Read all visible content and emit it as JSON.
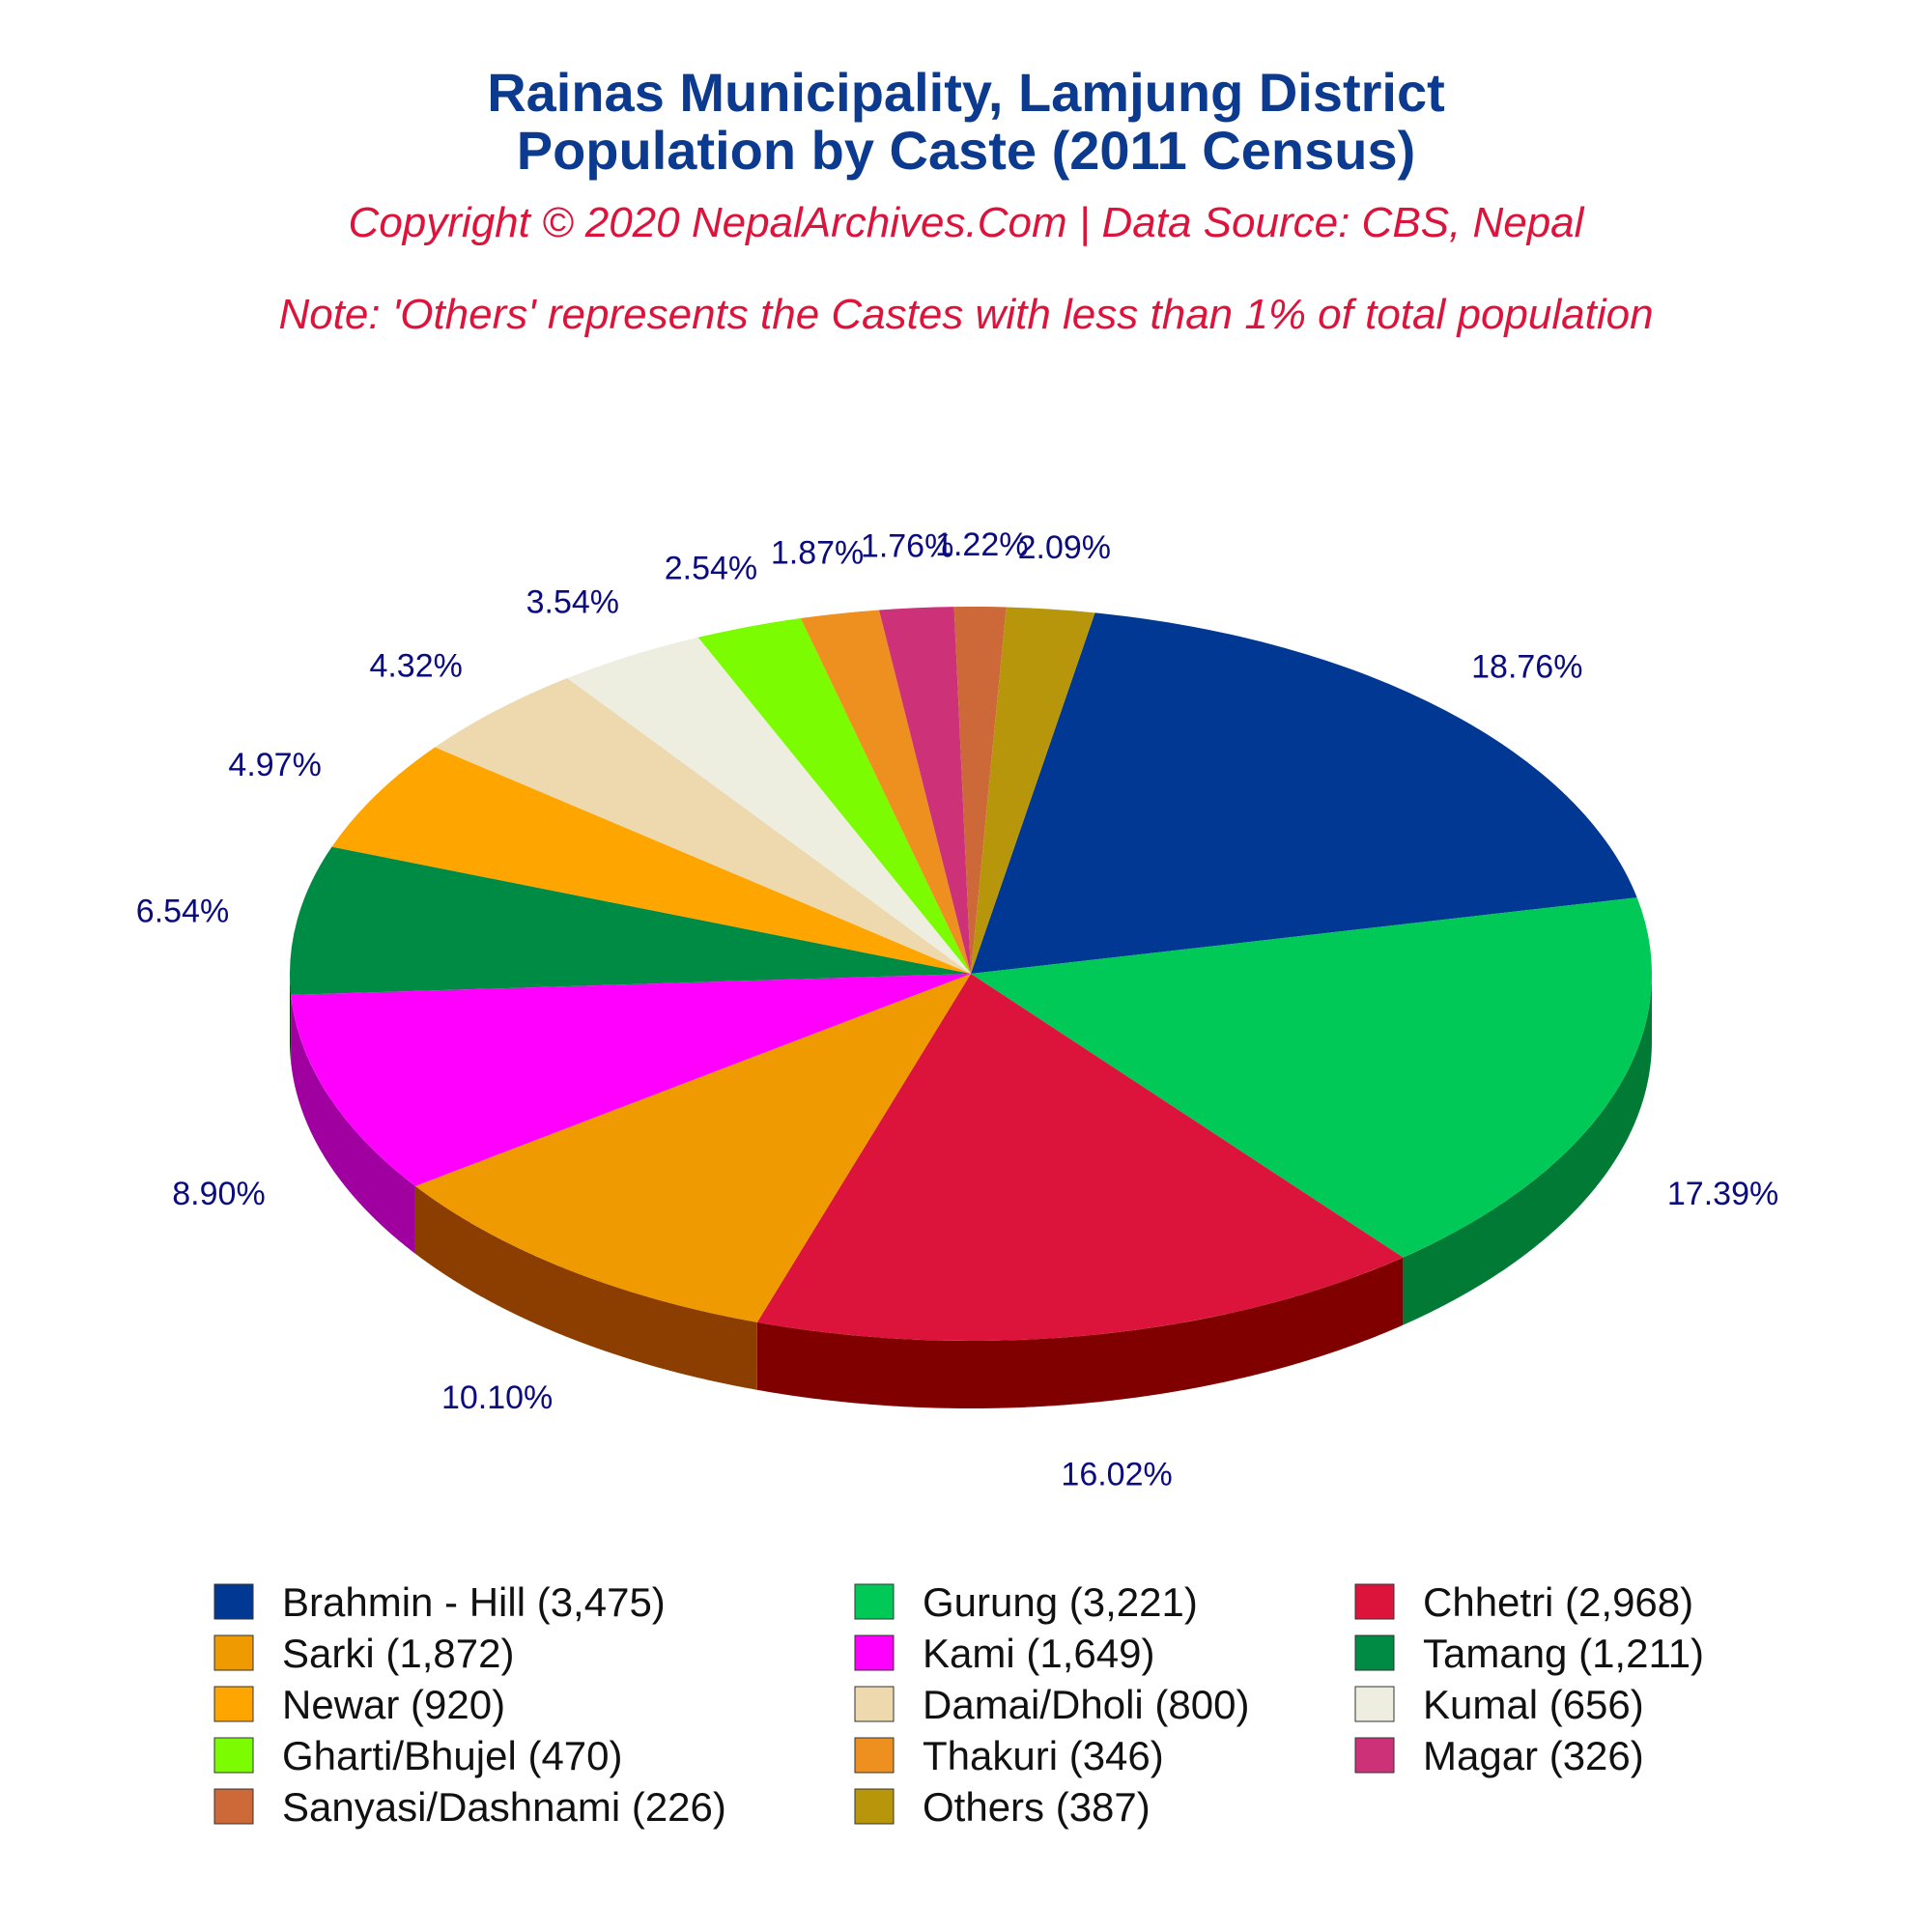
{
  "title_line1": "Rainas Municipality, Lamjung District",
  "title_line2": "Population by Caste (2011 Census)",
  "copyright": "Copyright © 2020 NepalArchives.Com | Data Source: CBS, Nepal",
  "note": "Note: 'Others' represents the Castes with less than 1% of total population",
  "chart_data": {
    "type": "pie",
    "style": "3d",
    "legend_position": "bottom",
    "slices": [
      {
        "label": "Brahmin - Hill (3,475)",
        "value": 3475,
        "pct_label": "18.76%",
        "color": "#003893",
        "side_color": "#001f5c"
      },
      {
        "label": "Gurung (3,221)",
        "value": 3221,
        "pct_label": "17.39%",
        "color": "#00c957",
        "side_color": "#007a35"
      },
      {
        "label": "Chhetri (2,968)",
        "value": 2968,
        "pct_label": "16.02%",
        "color": "#dc143c",
        "side_color": "#800000"
      },
      {
        "label": "Sarki (1,872)",
        "value": 1872,
        "pct_label": "10.10%",
        "color": "#ee9a00",
        "side_color": "#8b3e00"
      },
      {
        "label": "Kami (1,649)",
        "value": 1649,
        "pct_label": "8.90%",
        "color": "#ff00ff",
        "side_color": "#a000a0"
      },
      {
        "label": "Tamang (1,211)",
        "value": 1211,
        "pct_label": "6.54%",
        "color": "#008b45",
        "side_color": "#003300"
      },
      {
        "label": "Newar (920)",
        "value": 920,
        "pct_label": "4.97%",
        "color": "#ffa500",
        "side_color": "#a34c00"
      },
      {
        "label": "Damai/Dholi (800)",
        "value": 800,
        "pct_label": "4.32%",
        "color": "#eed8ae",
        "side_color": "#9a7b4a"
      },
      {
        "label": "Kumal (656)",
        "value": 656,
        "pct_label": "3.54%",
        "color": "#eeeee0",
        "side_color": "#8b8b70"
      },
      {
        "label": "Gharti/Bhujel (470)",
        "value": 470,
        "pct_label": "2.54%",
        "color": "#7cfc00",
        "side_color": "#3c8000"
      },
      {
        "label": "Thakuri (346)",
        "value": 346,
        "pct_label": "1.87%",
        "color": "#ee9020",
        "side_color": "#8b4c00"
      },
      {
        "label": "Magar (326)",
        "value": 326,
        "pct_label": "1.76%",
        "color": "#cd3278",
        "side_color": "#7a1040"
      },
      {
        "label": "Sanyasi/Dashnami (226)",
        "value": 226,
        "pct_label": "1.22%",
        "color": "#cd6839",
        "side_color": "#7a3010"
      },
      {
        "label": "Others (387)",
        "value": 387,
        "pct_label": "2.09%",
        "color": "#b8960b",
        "side_color": "#6b5600"
      }
    ]
  }
}
